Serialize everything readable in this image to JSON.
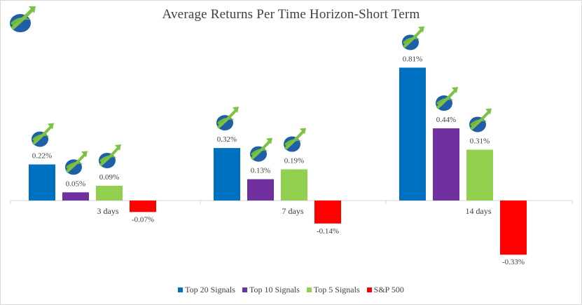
{
  "chart_data": {
    "type": "bar",
    "title": "Average Returns Per Time Horizon-Short Term",
    "xlabel": "",
    "ylabel": "",
    "categories": [
      "3 days",
      "7 days",
      "14 days"
    ],
    "series": [
      {
        "name": "Top 20 Signals",
        "color": "#0070C0",
        "values": [
          0.22,
          0.32,
          0.81
        ],
        "labels": [
          "0.22%",
          "0.32%",
          "0.81%"
        ],
        "logo": [
          true,
          true,
          true
        ]
      },
      {
        "name": "Top 10 Signals",
        "color": "#7030A0",
        "values": [
          0.05,
          0.13,
          0.44
        ],
        "labels": [
          "0.05%",
          "0.13%",
          "0.44%"
        ],
        "logo": [
          true,
          true,
          true
        ]
      },
      {
        "name": "Top 5 Signals",
        "color": "#92D050",
        "values": [
          0.09,
          0.19,
          0.31
        ],
        "labels": [
          "0.09%",
          "0.19%",
          "0.31%"
        ],
        "logo": [
          true,
          true,
          true
        ]
      },
      {
        "name": "S&P 500",
        "color": "#FF0000",
        "values": [
          -0.07,
          -0.14,
          -0.33
        ],
        "labels": [
          "-0.07%",
          "-0.14%",
          "-0.33%"
        ],
        "logo": [
          false,
          false,
          false
        ]
      }
    ],
    "ylim": [
      -0.35,
      0.85
    ],
    "grid": false,
    "legend_position": "bottom",
    "logo_icon": "rising-arrow-globe-logo-icon"
  }
}
